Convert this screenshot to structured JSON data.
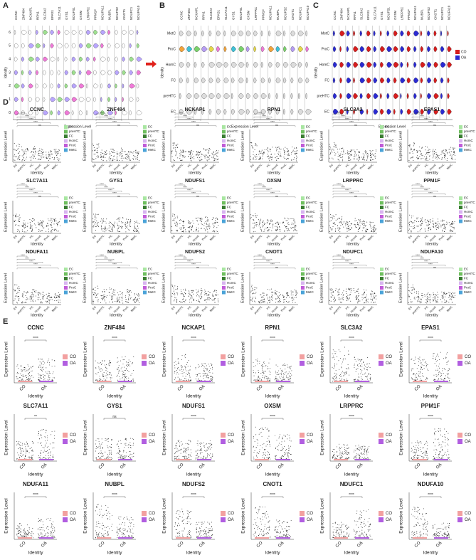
{
  "panel_a": {
    "label": "A",
    "genes": [
      "CCNC",
      "ZNF484",
      "NCKAP1",
      "RPN1",
      "SLC3A2",
      "EPAS1",
      "SLC7A11",
      "GYS1",
      "NDUFS1",
      "OXSM",
      "LRPPRC",
      "PPM1F",
      "NDUFA11",
      "NUBPL",
      "NDUFS2",
      "CNOT1",
      "NDUFC1",
      "NDUFA10"
    ],
    "rows": [
      "6",
      "5",
      "4",
      "3",
      "2",
      "1",
      "0"
    ],
    "x_label": "Expression Level",
    "y_label": "Identity"
  },
  "panel_b": {
    "label": "B",
    "genes": [
      "CCNC",
      "ZNF484",
      "NCKAP1",
      "RPN1",
      "SLC3A2",
      "EPAS1",
      "SLC7A11",
      "GYS1",
      "NDUFS1",
      "OXSM",
      "LRPPRC",
      "PPM1F",
      "NDUFA11",
      "NUBPL",
      "NDUFS2",
      "CNOT1",
      "NDUFC1",
      "NDUFA10"
    ],
    "rows": [
      "MetC",
      "ProC",
      "HomC",
      "FC",
      "preHTC",
      "EC"
    ],
    "x_label": "Expression Level",
    "y_label": "Identity"
  },
  "panel_c": {
    "label": "C",
    "genes": [
      "CCNC",
      "ZNF484",
      "NCKAP1",
      "RPN1",
      "SLC3A2",
      "EPAS1",
      "SLC7A11",
      "GYS1",
      "NDUFS1",
      "OXSM",
      "LRPPRC",
      "PPM1F",
      "NDUFA11",
      "NUBPL",
      "NDUFS2",
      "CNOT1",
      "NDUFC1",
      "NDUFA10"
    ],
    "rows": [
      "MetC",
      "ProC",
      "HomC",
      "FC",
      "preHTC",
      "EC"
    ],
    "legend": [
      "CO",
      "OA"
    ],
    "x_label": "Expression Level",
    "y_label": "Identity"
  },
  "panel_d": {
    "label": "D",
    "genes": [
      "CCNC",
      "ZNF484",
      "NCKAP1",
      "RPN1",
      "SLC3A2",
      "EPAS1",
      "SLC7A11",
      "GYS1",
      "NDUFS1",
      "OXSM",
      "LRPPRC",
      "PPM1F",
      "NDUFA11",
      "NUBPL",
      "NDUFS2",
      "CNOT1",
      "NDUFC1",
      "NDUFA10"
    ],
    "groups": [
      "EC",
      "preHTC",
      "FC",
      "HomC",
      "ProC",
      "MetC"
    ],
    "significance": [
      "****",
      "****",
      "****",
      "****",
      "ns"
    ],
    "x_label": "Identity",
    "y_label": "Expression Level"
  },
  "panel_e": {
    "label": "E",
    "genes": [
      "CCNC",
      "ZNF484",
      "NCKAP1",
      "RPN1",
      "SLC3A2",
      "EPAS1",
      "SLC7A11",
      "GYS1",
      "NDUFS1",
      "OXSM",
      "LRPPRC",
      "PPM1F",
      "NDUFA11",
      "NUBPL",
      "NDUFS2",
      "CNOT1",
      "NDUFC1",
      "NDUFA10"
    ],
    "groups": [
      "CO",
      "OA"
    ],
    "significance": [
      "****",
      "****",
      "****",
      "****",
      "****",
      "****",
      "**",
      "ns",
      "****",
      "****",
      "****",
      "****",
      "****",
      "****",
      "****",
      "****",
      "****",
      "****"
    ],
    "x_label": "Identity",
    "y_label": "Expression Level"
  }
}
